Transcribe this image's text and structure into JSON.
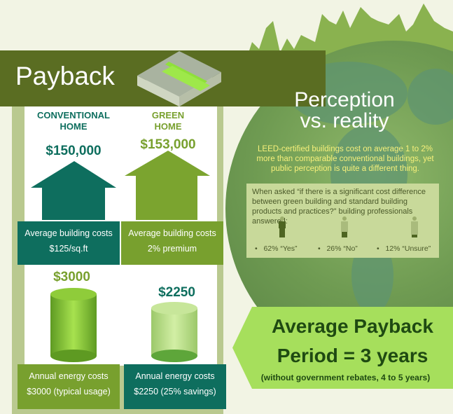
{
  "colors": {
    "header": "#5a6d22",
    "teal": "#0e6e5e",
    "green": "#78a02e",
    "payback_box": "#a6df5c",
    "perception_text": "#f6f07a"
  },
  "header": {
    "title": "Payback",
    "icon": "money-stack-icon"
  },
  "homes": {
    "conventional": {
      "title_line1": "CONVENTIONAL",
      "title_line2": "HOME",
      "price": "$150,000",
      "card_line1": "Average building costs",
      "card_line2": "$125/sq.ft"
    },
    "green": {
      "title_line1": "GREEN",
      "title_line2": "HOME",
      "price": "$153,000",
      "card_line1": "Average building costs",
      "card_line2": "2% premium"
    }
  },
  "energy": {
    "conventional": {
      "value": "$3000",
      "card_line1": "Annual energy costs",
      "card_line2": "$3000 (typical usage)"
    },
    "green": {
      "value": "$2250",
      "card_line1": "Annual energy costs",
      "card_line2": "$2250 (25% savings)"
    }
  },
  "perception": {
    "title_line1": "Perception",
    "title_line2": "vs. reality",
    "text": "LEED-certified buildings cost on average 1 to 2% more than comparable conventional buildings, yet public perception is quite a different thing.",
    "question": "When asked “if there is a significant cost difference between green building and standard building products and practices?” building professionals answered:",
    "answers": [
      {
        "label": "62% “Yes”",
        "percent": 62
      },
      {
        "label": "26% “No”",
        "percent": 26
      },
      {
        "label": "12% “Unsure”",
        "percent": 12
      }
    ]
  },
  "payback": {
    "line1": "Average Payback",
    "line2": "Period = 3 years",
    "note": "(without government rebates, 4 to 5 years)"
  }
}
